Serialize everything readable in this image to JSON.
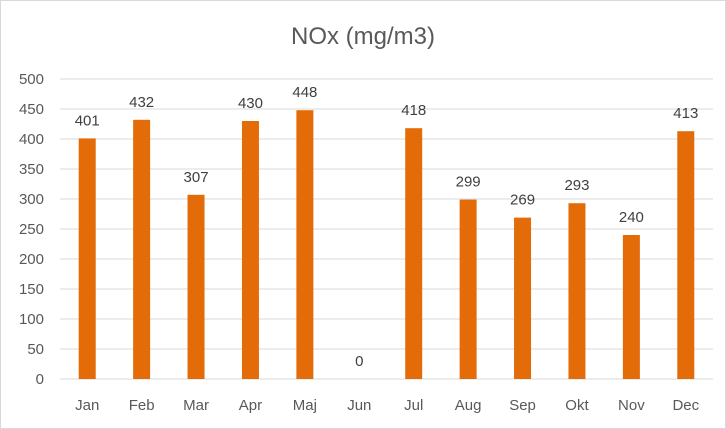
{
  "chart_data": {
    "type": "bar",
    "title": "NOx (mg/m3)",
    "xlabel": "",
    "ylabel": "",
    "categories": [
      "Jan",
      "Feb",
      "Mar",
      "Apr",
      "Maj",
      "Jun",
      "Jul",
      "Aug",
      "Sep",
      "Okt",
      "Nov",
      "Dec"
    ],
    "values": [
      401,
      432,
      307,
      430,
      448,
      0,
      418,
      299,
      269,
      293,
      240,
      413
    ],
    "ylim": [
      0,
      500
    ],
    "yticks": [
      0,
      50,
      100,
      150,
      200,
      250,
      300,
      350,
      400,
      450,
      500
    ],
    "grid": true,
    "legend": "none",
    "data_labels": true,
    "bar_color": "#E36C09"
  }
}
